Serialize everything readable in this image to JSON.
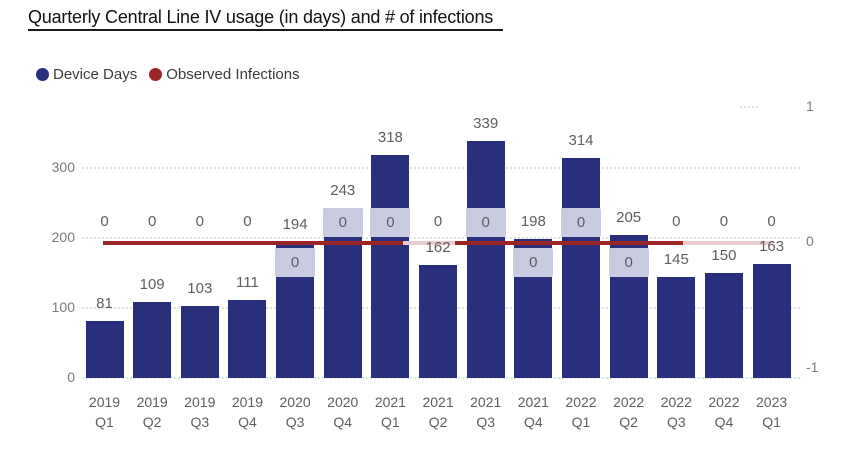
{
  "title": "Quarterly Central Line IV usage (in days) and # of infections",
  "legend": [
    {
      "label": "Device Days",
      "color": "#2a2f7d",
      "icon": "circle"
    },
    {
      "label": "Observed Infections",
      "color": "#9a2626",
      "icon": "circle"
    }
  ],
  "chart_data": {
    "type": "bar",
    "subtype": "combo-bar-line",
    "title": "Quarterly Central Line IV usage (in days) and # of infections",
    "categories": [
      "2019 Q1",
      "2019 Q2",
      "2019 Q3",
      "2019 Q4",
      "2020 Q3",
      "2020 Q4",
      "2021 Q1",
      "2021 Q2",
      "2021 Q3",
      "2021 Q4",
      "2022 Q1",
      "2022 Q2",
      "2022 Q3",
      "2022 Q4",
      "2023 Q1"
    ],
    "series": [
      {
        "name": "Device Days",
        "type": "bar",
        "axis": "left",
        "color": "#2a2f7d",
        "values": [
          81,
          109,
          103,
          111,
          194,
          243,
          318,
          162,
          339,
          198,
          314,
          205,
          145,
          150,
          163
        ]
      },
      {
        "name": "Observed Infections",
        "type": "line",
        "axis": "right",
        "color": "#9a2626",
        "values": [
          0,
          0,
          0,
          0,
          0,
          0,
          0,
          0,
          0,
          0,
          0,
          0,
          0,
          0,
          0
        ]
      }
    ],
    "left_axis": {
      "ticks": [
        0,
        100,
        200,
        300
      ],
      "min": 0
    },
    "right_axis": {
      "ticks": [
        -1,
        0,
        1
      ],
      "min": -1,
      "max": 1
    },
    "grid": "horizontal-dotted",
    "legend_position": "top-left",
    "infection_label_mode": [
      "above",
      "above",
      "above",
      "above",
      "below-boxed",
      "above-boxed",
      "above-boxed",
      "above",
      "above-boxed",
      "below-boxed",
      "above-boxed",
      "below-boxed",
      "above",
      "above",
      "above"
    ],
    "infection_label_text": "0"
  }
}
